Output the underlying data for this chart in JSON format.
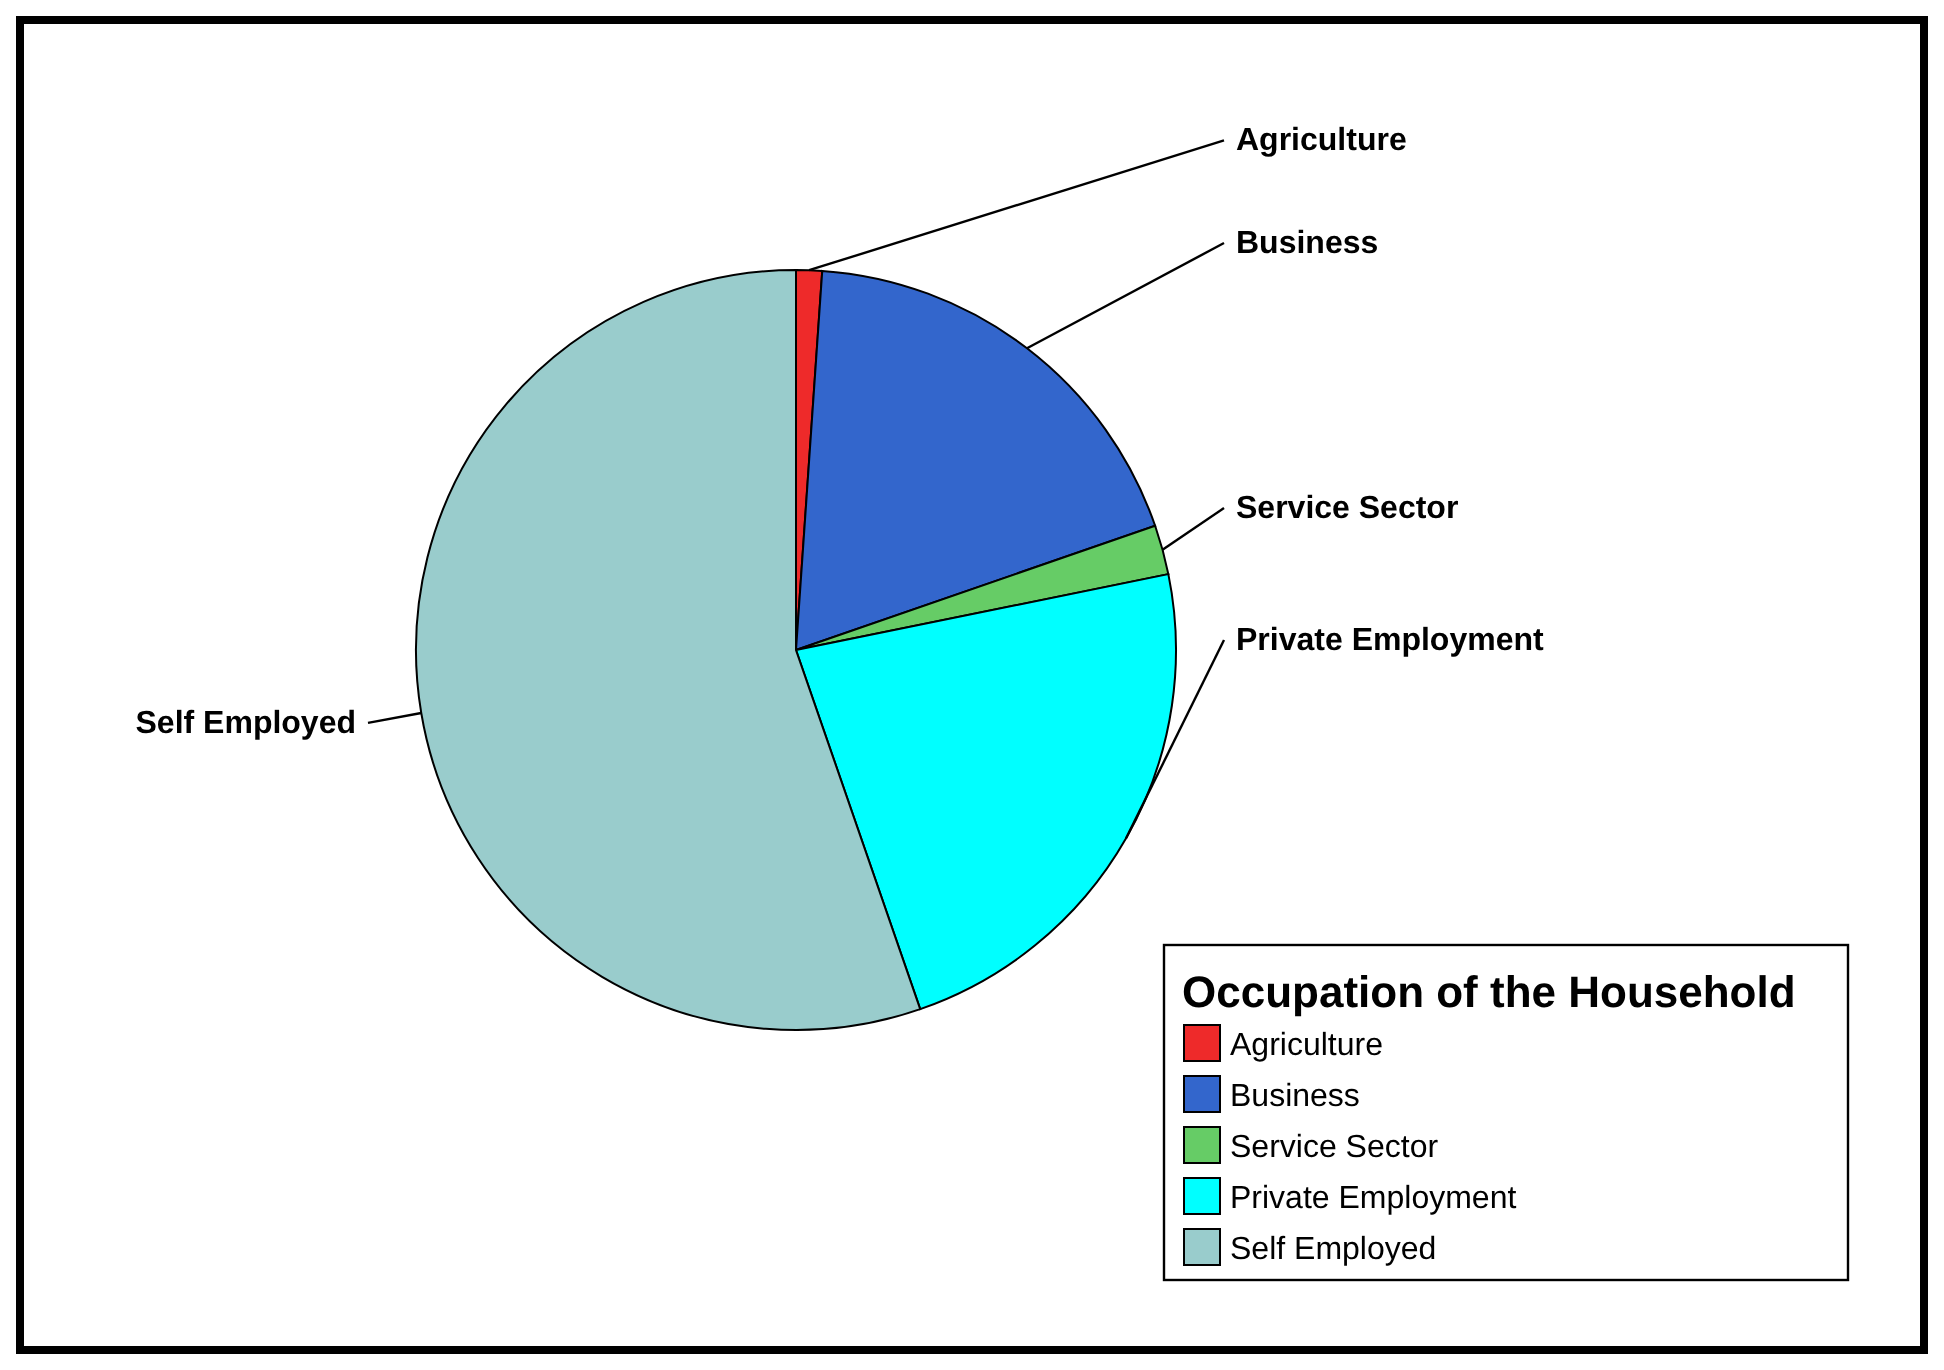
{
  "chart_data": {
    "type": "pie",
    "legend_title": "Occupation of the Household",
    "legend": "bottom right",
    "categories": [
      "Agriculture",
      "Business",
      "Service Sector",
      "Private Employment",
      "Self Employed"
    ],
    "values": [
      1.1,
      18.6,
      2.1,
      22.9,
      55.3
    ],
    "colors": [
      "#ee2a2a",
      "#3366cc",
      "#66cc66",
      "#00ffff",
      "#99cccc"
    ]
  }
}
